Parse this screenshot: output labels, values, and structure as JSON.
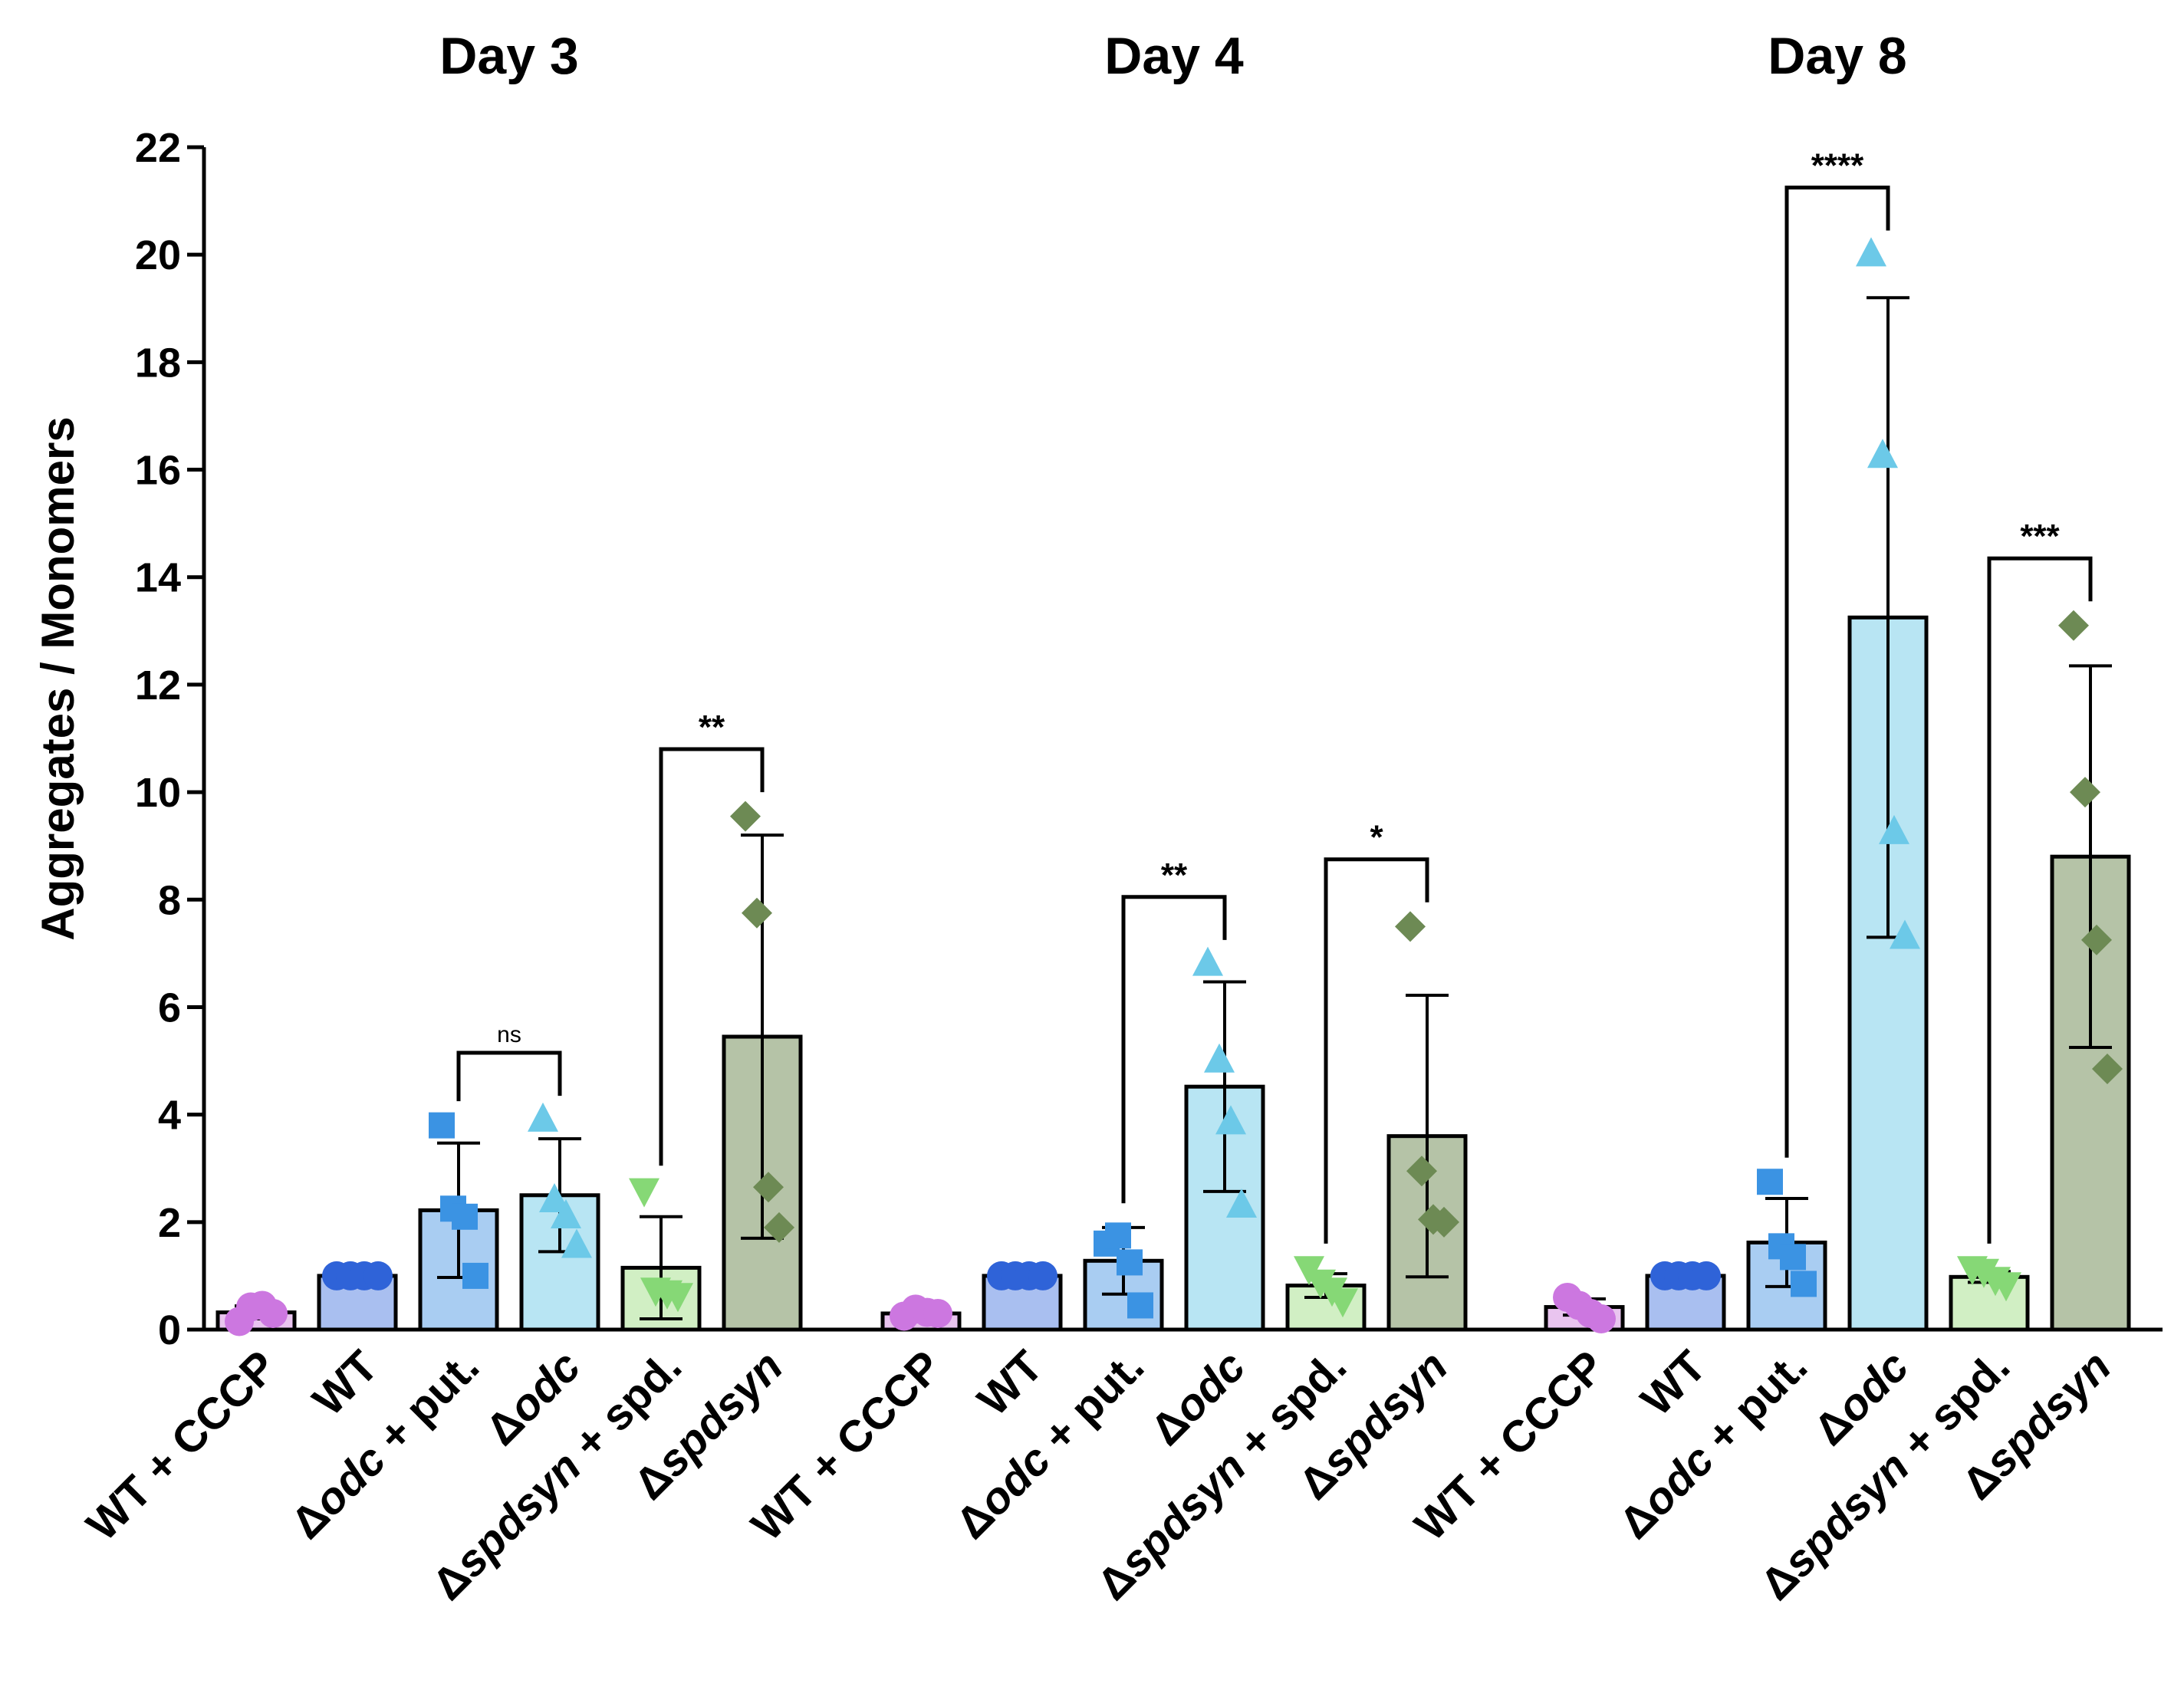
{
  "chart_data": {
    "type": "bar",
    "ylabel": "Aggregates / Monomers",
    "ylim": [
      0,
      22
    ],
    "yticks": [
      0,
      2,
      4,
      6,
      8,
      10,
      12,
      14,
      16,
      18,
      20,
      22
    ],
    "groups": [
      {
        "title": "Day 3",
        "bars": [
          {
            "label": "WT + CCCP",
            "mean": 0.32,
            "sd": 0.12,
            "points": [
              0.15,
              0.42,
              0.45,
              0.3
            ]
          },
          {
            "label": "WT",
            "mean": 1.0,
            "sd": 0.0,
            "points": [
              1.0,
              1.0,
              1.0,
              1.0
            ]
          },
          {
            "label": "Δodc + put.",
            "mean": 2.22,
            "sd": 1.25,
            "points": [
              3.8,
              2.25,
              2.1,
              1.0
            ]
          },
          {
            "label": "Δodc",
            "mean": 2.5,
            "sd": 1.05,
            "points": [
              3.9,
              2.4,
              2.1,
              1.55
            ]
          },
          {
            "label": "Δspdsyn + spd.",
            "mean": 1.15,
            "sd": 0.95,
            "points": [
              2.6,
              0.75,
              0.7,
              0.65
            ]
          },
          {
            "label": "Δspdsyn",
            "mean": 5.45,
            "sd": 3.75,
            "points": [
              9.55,
              7.75,
              2.65,
              1.9
            ]
          }
        ],
        "comparisons": [
          {
            "from": 2,
            "to": 3,
            "label": "ns"
          },
          {
            "from": 4,
            "to": 5,
            "label": "**"
          }
        ]
      },
      {
        "title": "Day 4",
        "bars": [
          {
            "label": "WT + CCCP",
            "mean": 0.3,
            "sd": 0.08,
            "points": [
              0.25,
              0.38,
              0.32,
              0.3
            ]
          },
          {
            "label": "WT",
            "mean": 1.0,
            "sd": 0.0,
            "points": [
              1.0,
              1.0,
              1.0,
              1.0
            ]
          },
          {
            "label": "Δodc + put.",
            "mean": 1.28,
            "sd": 0.62,
            "points": [
              1.6,
              1.75,
              1.25,
              0.45
            ]
          },
          {
            "label": "Δodc",
            "mean": 4.52,
            "sd": 1.95,
            "points": [
              6.8,
              5.0,
              3.85,
              2.3
            ]
          },
          {
            "label": "Δspdsyn + spd.",
            "mean": 0.82,
            "sd": 0.22,
            "points": [
              1.15,
              0.9,
              0.75,
              0.55
            ]
          },
          {
            "label": "Δspdsyn",
            "mean": 3.6,
            "sd": 2.62,
            "points": [
              7.5,
              2.95,
              2.05,
              2.0
            ]
          }
        ],
        "comparisons": [
          {
            "from": 2,
            "to": 3,
            "label": "**"
          },
          {
            "from": 4,
            "to": 5,
            "label": "*"
          }
        ]
      },
      {
        "title": "Day 8",
        "bars": [
          {
            "label": "WT + CCCP",
            "mean": 0.42,
            "sd": 0.15,
            "points": [
              0.6,
              0.45,
              0.3,
              0.2
            ]
          },
          {
            "label": "WT",
            "mean": 1.0,
            "sd": 0.0,
            "points": [
              1.0,
              1.0,
              1.0,
              1.0
            ]
          },
          {
            "label": "Δodc + put.",
            "mean": 1.62,
            "sd": 0.82,
            "points": [
              2.75,
              1.55,
              1.35,
              0.85
            ]
          },
          {
            "label": "Δodc",
            "mean": 13.25,
            "sd": 5.95,
            "points": [
              20.0,
              16.25,
              9.25,
              7.3
            ]
          },
          {
            "label": "Δspdsyn + spd.",
            "mean": 0.98,
            "sd": 0.1,
            "points": [
              1.15,
              1.1,
              0.95,
              0.85
            ]
          },
          {
            "label": "Δspdsyn",
            "mean": 8.8,
            "sd": 3.55,
            "points": [
              13.1,
              10.0,
              7.25,
              4.85
            ]
          }
        ],
        "comparisons": [
          {
            "from": 2,
            "to": 3,
            "label": "****"
          },
          {
            "from": 4,
            "to": 5,
            "label": "***"
          }
        ]
      }
    ],
    "series_styles": [
      {
        "name": "WT + CCCP",
        "fill": "#e9c4ef",
        "marker": "circle",
        "marker_color": "#cc77e0"
      },
      {
        "name": "WT",
        "fill": "#a9bff0",
        "marker": "circle",
        "marker_color": "#2f63d8"
      },
      {
        "name": "Δodc + put.",
        "fill": "#a9cdf2",
        "marker": "square",
        "marker_color": "#3b93e3"
      },
      {
        "name": "Δodc",
        "fill": "#b8e5f3",
        "marker": "triangle",
        "marker_color": "#6cc9e8"
      },
      {
        "name": "Δspdsyn + spd.",
        "fill": "#d1efc4",
        "marker": "triangle-down",
        "marker_color": "#86d876"
      },
      {
        "name": "Δspdsyn",
        "fill": "#b5c3a7",
        "marker": "diamond",
        "marker_color": "#6d8a54"
      }
    ],
    "xlabel_parts": [
      [
        {
          "t": "WT + CCCP",
          "i": false
        }
      ],
      [
        {
          "t": "WT",
          "i": false
        }
      ],
      [
        {
          "t": "Δ",
          "i": false
        },
        {
          "t": "odc",
          "i": true
        },
        {
          "t": " + put.",
          "i": false
        }
      ],
      [
        {
          "t": "Δ",
          "i": false
        },
        {
          "t": "odc",
          "i": true
        }
      ],
      [
        {
          "t": "Δ",
          "i": false
        },
        {
          "t": "spdsyn",
          "i": true
        },
        {
          "t": " + spd.",
          "i": false
        }
      ],
      [
        {
          "t": "Δ",
          "i": false
        },
        {
          "t": "spdsyn",
          "i": true
        }
      ]
    ]
  }
}
